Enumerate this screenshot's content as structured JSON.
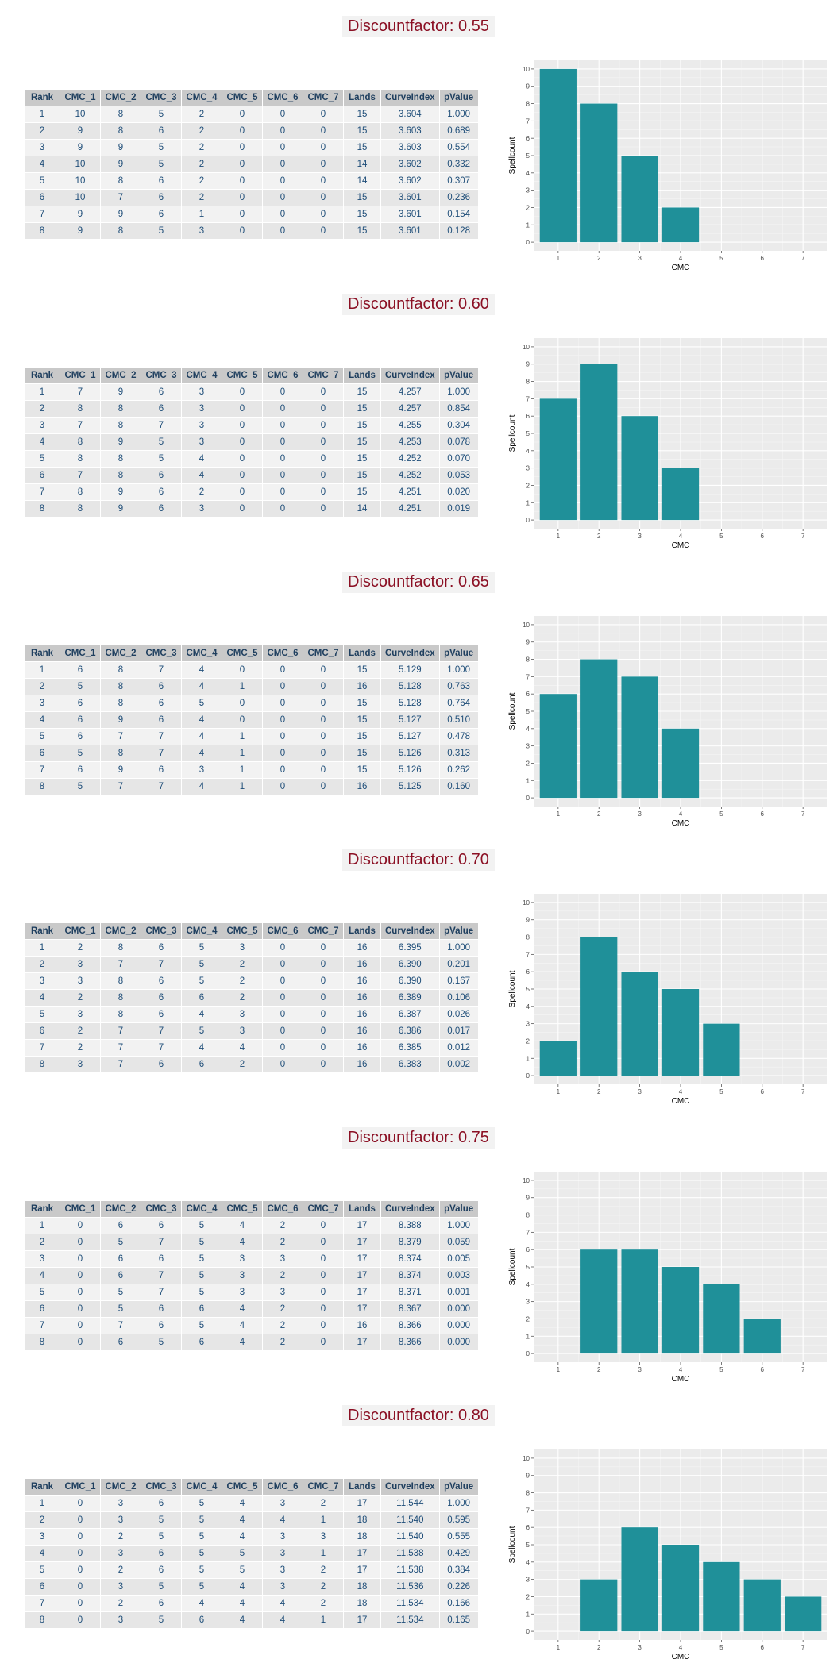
{
  "headers": [
    "Rank",
    "CMC_1",
    "CMC_2",
    "CMC_3",
    "CMC_4",
    "CMC_5",
    "CMC_6",
    "CMC_7",
    "Lands",
    "CurveIndex",
    "pValue"
  ],
  "colors": {
    "bar": "#1f9099",
    "panel": "#ebebeb",
    "title_text": "#8b1024",
    "title_bg": "#f2f2f2",
    "table_header_bg": "#c9c9c9",
    "table_text": "#1f4e79"
  },
  "sections": [
    {
      "title": "Discountfactor: 0.55",
      "rows": [
        [
          "1",
          "10",
          "8",
          "5",
          "2",
          "0",
          "0",
          "0",
          "15",
          "3.604",
          "1.000"
        ],
        [
          "2",
          "9",
          "8",
          "6",
          "2",
          "0",
          "0",
          "0",
          "15",
          "3.603",
          "0.689"
        ],
        [
          "3",
          "9",
          "9",
          "5",
          "2",
          "0",
          "0",
          "0",
          "15",
          "3.603",
          "0.554"
        ],
        [
          "4",
          "10",
          "9",
          "5",
          "2",
          "0",
          "0",
          "0",
          "14",
          "3.602",
          "0.332"
        ],
        [
          "5",
          "10",
          "8",
          "6",
          "2",
          "0",
          "0",
          "0",
          "14",
          "3.602",
          "0.307"
        ],
        [
          "6",
          "10",
          "7",
          "6",
          "2",
          "0",
          "0",
          "0",
          "15",
          "3.601",
          "0.236"
        ],
        [
          "7",
          "9",
          "9",
          "6",
          "1",
          "0",
          "0",
          "0",
          "15",
          "3.601",
          "0.154"
        ],
        [
          "8",
          "9",
          "8",
          "5",
          "3",
          "0",
          "0",
          "0",
          "15",
          "3.601",
          "0.128"
        ]
      ]
    },
    {
      "title": "Discountfactor: 0.60",
      "rows": [
        [
          "1",
          "7",
          "9",
          "6",
          "3",
          "0",
          "0",
          "0",
          "15",
          "4.257",
          "1.000"
        ],
        [
          "2",
          "8",
          "8",
          "6",
          "3",
          "0",
          "0",
          "0",
          "15",
          "4.257",
          "0.854"
        ],
        [
          "3",
          "7",
          "8",
          "7",
          "3",
          "0",
          "0",
          "0",
          "15",
          "4.255",
          "0.304"
        ],
        [
          "4",
          "8",
          "9",
          "5",
          "3",
          "0",
          "0",
          "0",
          "15",
          "4.253",
          "0.078"
        ],
        [
          "5",
          "8",
          "8",
          "5",
          "4",
          "0",
          "0",
          "0",
          "15",
          "4.252",
          "0.070"
        ],
        [
          "6",
          "7",
          "8",
          "6",
          "4",
          "0",
          "0",
          "0",
          "15",
          "4.252",
          "0.053"
        ],
        [
          "7",
          "8",
          "9",
          "6",
          "2",
          "0",
          "0",
          "0",
          "15",
          "4.251",
          "0.020"
        ],
        [
          "8",
          "8",
          "9",
          "6",
          "3",
          "0",
          "0",
          "0",
          "14",
          "4.251",
          "0.019"
        ]
      ]
    },
    {
      "title": "Discountfactor: 0.65",
      "rows": [
        [
          "1",
          "6",
          "8",
          "7",
          "4",
          "0",
          "0",
          "0",
          "15",
          "5.129",
          "1.000"
        ],
        [
          "2",
          "5",
          "8",
          "6",
          "4",
          "1",
          "0",
          "0",
          "16",
          "5.128",
          "0.763"
        ],
        [
          "3",
          "6",
          "8",
          "6",
          "5",
          "0",
          "0",
          "0",
          "15",
          "5.128",
          "0.764"
        ],
        [
          "4",
          "6",
          "9",
          "6",
          "4",
          "0",
          "0",
          "0",
          "15",
          "5.127",
          "0.510"
        ],
        [
          "5",
          "6",
          "7",
          "7",
          "4",
          "1",
          "0",
          "0",
          "15",
          "5.127",
          "0.478"
        ],
        [
          "6",
          "5",
          "8",
          "7",
          "4",
          "1",
          "0",
          "0",
          "15",
          "5.126",
          "0.313"
        ],
        [
          "7",
          "6",
          "9",
          "6",
          "3",
          "1",
          "0",
          "0",
          "15",
          "5.126",
          "0.262"
        ],
        [
          "8",
          "5",
          "7",
          "7",
          "4",
          "1",
          "0",
          "0",
          "16",
          "5.125",
          "0.160"
        ]
      ]
    },
    {
      "title": "Discountfactor: 0.70",
      "rows": [
        [
          "1",
          "2",
          "8",
          "6",
          "5",
          "3",
          "0",
          "0",
          "16",
          "6.395",
          "1.000"
        ],
        [
          "2",
          "3",
          "7",
          "7",
          "5",
          "2",
          "0",
          "0",
          "16",
          "6.390",
          "0.201"
        ],
        [
          "3",
          "3",
          "8",
          "6",
          "5",
          "2",
          "0",
          "0",
          "16",
          "6.390",
          "0.167"
        ],
        [
          "4",
          "2",
          "8",
          "6",
          "6",
          "2",
          "0",
          "0",
          "16",
          "6.389",
          "0.106"
        ],
        [
          "5",
          "3",
          "8",
          "6",
          "4",
          "3",
          "0",
          "0",
          "16",
          "6.387",
          "0.026"
        ],
        [
          "6",
          "2",
          "7",
          "7",
          "5",
          "3",
          "0",
          "0",
          "16",
          "6.386",
          "0.017"
        ],
        [
          "7",
          "2",
          "7",
          "7",
          "4",
          "4",
          "0",
          "0",
          "16",
          "6.385",
          "0.012"
        ],
        [
          "8",
          "3",
          "7",
          "6",
          "6",
          "2",
          "0",
          "0",
          "16",
          "6.383",
          "0.002"
        ]
      ]
    },
    {
      "title": "Discountfactor: 0.75",
      "rows": [
        [
          "1",
          "0",
          "6",
          "6",
          "5",
          "4",
          "2",
          "0",
          "17",
          "8.388",
          "1.000"
        ],
        [
          "2",
          "0",
          "5",
          "7",
          "5",
          "4",
          "2",
          "0",
          "17",
          "8.379",
          "0.059"
        ],
        [
          "3",
          "0",
          "6",
          "6",
          "5",
          "3",
          "3",
          "0",
          "17",
          "8.374",
          "0.005"
        ],
        [
          "4",
          "0",
          "6",
          "7",
          "5",
          "3",
          "2",
          "0",
          "17",
          "8.374",
          "0.003"
        ],
        [
          "5",
          "0",
          "5",
          "7",
          "5",
          "3",
          "3",
          "0",
          "17",
          "8.371",
          "0.001"
        ],
        [
          "6",
          "0",
          "5",
          "6",
          "6",
          "4",
          "2",
          "0",
          "17",
          "8.367",
          "0.000"
        ],
        [
          "7",
          "0",
          "7",
          "6",
          "5",
          "4",
          "2",
          "0",
          "16",
          "8.366",
          "0.000"
        ],
        [
          "8",
          "0",
          "6",
          "5",
          "6",
          "4",
          "2",
          "0",
          "17",
          "8.366",
          "0.000"
        ]
      ]
    },
    {
      "title": "Discountfactor: 0.80",
      "rows": [
        [
          "1",
          "0",
          "3",
          "6",
          "5",
          "4",
          "3",
          "2",
          "17",
          "11.544",
          "1.000"
        ],
        [
          "2",
          "0",
          "3",
          "5",
          "5",
          "4",
          "4",
          "1",
          "18",
          "11.540",
          "0.595"
        ],
        [
          "3",
          "0",
          "2",
          "5",
          "5",
          "4",
          "3",
          "3",
          "18",
          "11.540",
          "0.555"
        ],
        [
          "4",
          "0",
          "3",
          "6",
          "5",
          "5",
          "3",
          "1",
          "17",
          "11.538",
          "0.429"
        ],
        [
          "5",
          "0",
          "2",
          "6",
          "5",
          "5",
          "3",
          "2",
          "17",
          "11.538",
          "0.384"
        ],
        [
          "6",
          "0",
          "3",
          "5",
          "5",
          "4",
          "3",
          "2",
          "18",
          "11.536",
          "0.226"
        ],
        [
          "7",
          "0",
          "2",
          "6",
          "4",
          "4",
          "4",
          "2",
          "18",
          "11.534",
          "0.166"
        ],
        [
          "8",
          "0",
          "3",
          "5",
          "6",
          "4",
          "4",
          "1",
          "17",
          "11.534",
          "0.165"
        ]
      ]
    }
  ],
  "chart_data": [
    {
      "type": "bar",
      "categories": [
        "1",
        "2",
        "3",
        "4",
        "5",
        "6",
        "7"
      ],
      "values": [
        10,
        8,
        5,
        2,
        0,
        0,
        0
      ],
      "xlabel": "CMC",
      "ylabel": "Spellcount",
      "ylim": [
        0,
        10
      ],
      "yticks": [
        "0",
        "1",
        "2",
        "3",
        "4",
        "5",
        "6",
        "7",
        "8",
        "9",
        "10"
      ],
      "grid": true
    },
    {
      "type": "bar",
      "categories": [
        "1",
        "2",
        "3",
        "4",
        "5",
        "6",
        "7"
      ],
      "values": [
        7,
        9,
        6,
        3,
        0,
        0,
        0
      ],
      "xlabel": "CMC",
      "ylabel": "Spellcount",
      "ylim": [
        0,
        10
      ],
      "yticks": [
        "0",
        "1",
        "2",
        "3",
        "4",
        "5",
        "6",
        "7",
        "8",
        "9",
        "10"
      ],
      "grid": true
    },
    {
      "type": "bar",
      "categories": [
        "1",
        "2",
        "3",
        "4",
        "5",
        "6",
        "7"
      ],
      "values": [
        6,
        8,
        7,
        4,
        0,
        0,
        0
      ],
      "xlabel": "CMC",
      "ylabel": "Spellcount",
      "ylim": [
        0,
        10
      ],
      "yticks": [
        "0",
        "1",
        "2",
        "3",
        "4",
        "5",
        "6",
        "7",
        "8",
        "9",
        "10"
      ],
      "grid": true
    },
    {
      "type": "bar",
      "categories": [
        "1",
        "2",
        "3",
        "4",
        "5",
        "6",
        "7"
      ],
      "values": [
        2,
        8,
        6,
        5,
        3,
        0,
        0
      ],
      "xlabel": "CMC",
      "ylabel": "Spellcount",
      "ylim": [
        0,
        10
      ],
      "yticks": [
        "0",
        "1",
        "2",
        "3",
        "4",
        "5",
        "6",
        "7",
        "8",
        "9",
        "10"
      ],
      "grid": true
    },
    {
      "type": "bar",
      "categories": [
        "1",
        "2",
        "3",
        "4",
        "5",
        "6",
        "7"
      ],
      "values": [
        0,
        6,
        6,
        5,
        4,
        2,
        0
      ],
      "xlabel": "CMC",
      "ylabel": "Spellcount",
      "ylim": [
        0,
        10
      ],
      "yticks": [
        "0",
        "1",
        "2",
        "3",
        "4",
        "5",
        "6",
        "7",
        "8",
        "9",
        "10"
      ],
      "grid": true
    },
    {
      "type": "bar",
      "categories": [
        "1",
        "2",
        "3",
        "4",
        "5",
        "6",
        "7"
      ],
      "values": [
        0,
        3,
        6,
        5,
        4,
        3,
        2
      ],
      "xlabel": "CMC",
      "ylabel": "Spellcount",
      "ylim": [
        0,
        10
      ],
      "yticks": [
        "0",
        "1",
        "2",
        "3",
        "4",
        "5",
        "6",
        "7",
        "8",
        "9",
        "10"
      ],
      "grid": true
    }
  ]
}
